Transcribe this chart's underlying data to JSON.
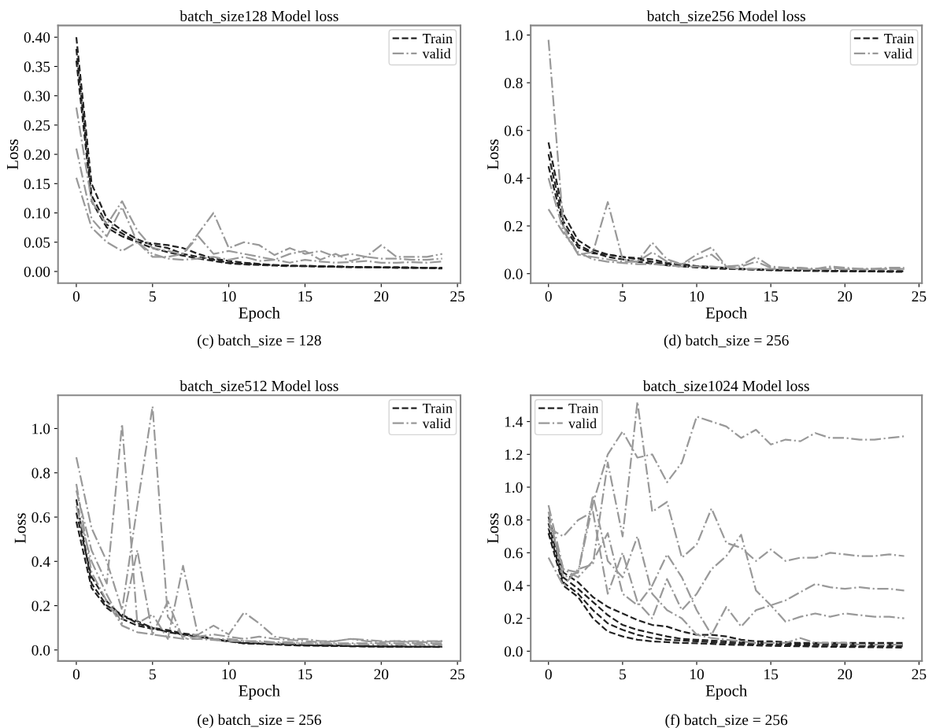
{
  "chart_data": [
    {
      "type": "line",
      "title": "batch_size128 Model loss",
      "xlabel": "Epoch",
      "ylabel": "Loss",
      "annotations": [
        "(c) batch_size = 128"
      ],
      "legend": "top right",
      "grid": false,
      "x": [
        0,
        1,
        2,
        3,
        4,
        5,
        6,
        7,
        8,
        9,
        10,
        11,
        12,
        13,
        14,
        15,
        16,
        17,
        18,
        19,
        20,
        21,
        22,
        23,
        24
      ],
      "xlim": [
        -1.2,
        25.2
      ],
      "xticks": [
        0,
        5,
        10,
        15,
        20,
        25
      ],
      "ylim": [
        -0.02,
        0.42
      ],
      "yticks": [
        {
          "value": 0,
          "label": "0.00"
        },
        {
          "value": 0.05,
          "label": "0.05"
        },
        {
          "value": 0.1,
          "label": "0.10"
        },
        {
          "value": 0.15,
          "label": "0.15"
        },
        {
          "value": 0.2,
          "label": "0.20"
        },
        {
          "value": 0.25,
          "label": "0.25"
        },
        {
          "value": 0.3,
          "label": "0.30"
        },
        {
          "value": 0.35,
          "label": "0.35"
        },
        {
          "value": 0.4,
          "label": "0.40"
        }
      ],
      "series": [
        {
          "name": "Train",
          "color": "#222222",
          "line_style": "dashed",
          "values": [
            0.4,
            0.15,
            0.09,
            0.07,
            0.055,
            0.045,
            0.04,
            0.03,
            0.025,
            0.02,
            0.015,
            0.013,
            0.012,
            0.011,
            0.01,
            0.009,
            0.009,
            0.008,
            0.008,
            0.007,
            0.007,
            0.007,
            0.006,
            0.006,
            0.006
          ]
        },
        {
          "color": "#222222",
          "line_style": "dashed",
          "values": [
            0.38,
            0.13,
            0.08,
            0.065,
            0.05,
            0.04,
            0.033,
            0.027,
            0.022,
            0.018,
            0.014,
            0.012,
            0.011,
            0.01,
            0.009,
            0.009,
            0.008,
            0.008,
            0.007,
            0.007,
            0.007,
            0.006,
            0.006,
            0.006,
            0.005
          ]
        },
        {
          "color": "#222222",
          "line_style": "dashed",
          "values": [
            0.36,
            0.12,
            0.075,
            0.06,
            0.05,
            0.048,
            0.045,
            0.04,
            0.03,
            0.022,
            0.018,
            0.015,
            0.013,
            0.011,
            0.01,
            0.01,
            0.009,
            0.009,
            0.008,
            0.008,
            0.007,
            0.007,
            0.007,
            0.006,
            0.006
          ]
        },
        {
          "name": "valid",
          "color": "#999999",
          "line_style": "dashdot",
          "values": [
            0.28,
            0.12,
            0.08,
            0.12,
            0.07,
            0.04,
            0.035,
            0.03,
            0.065,
            0.1,
            0.04,
            0.05,
            0.045,
            0.028,
            0.04,
            0.03,
            0.035,
            0.025,
            0.03,
            0.025,
            0.045,
            0.025,
            0.025,
            0.025,
            0.03
          ]
        },
        {
          "color": "#999999",
          "line_style": "dashdot",
          "values": [
            0.21,
            0.09,
            0.06,
            0.11,
            0.05,
            0.025,
            0.025,
            0.03,
            0.06,
            0.03,
            0.035,
            0.03,
            0.025,
            0.02,
            0.03,
            0.035,
            0.02,
            0.03,
            0.018,
            0.025,
            0.022,
            0.022,
            0.02,
            0.02,
            0.022
          ]
        },
        {
          "color": "#999999",
          "line_style": "dashdot",
          "values": [
            0.16,
            0.075,
            0.05,
            0.035,
            0.05,
            0.03,
            0.022,
            0.02,
            0.022,
            0.025,
            0.02,
            0.025,
            0.018,
            0.02,
            0.015,
            0.02,
            0.017,
            0.015,
            0.016,
            0.018,
            0.015,
            0.015,
            0.016,
            0.015,
            0.017
          ]
        }
      ]
    },
    {
      "type": "line",
      "title": "batch_size256 Model loss",
      "xlabel": "Epoch",
      "ylabel": "Loss",
      "annotations": [
        "(d) batch_size = 256"
      ],
      "legend": "top right",
      "grid": false,
      "x": [
        0,
        1,
        2,
        3,
        4,
        5,
        6,
        7,
        8,
        9,
        10,
        11,
        12,
        13,
        14,
        15,
        16,
        17,
        18,
        19,
        20,
        21,
        22,
        23,
        24
      ],
      "xlim": [
        -1.2,
        25.2
      ],
      "xticks": [
        0,
        5,
        10,
        15,
        20,
        25
      ],
      "ylim": [
        -0.04,
        1.04
      ],
      "yticks": [
        {
          "value": 0,
          "label": "0.0"
        },
        {
          "value": 0.2,
          "label": "0.2"
        },
        {
          "value": 0.4,
          "label": "0.4"
        },
        {
          "value": 0.6,
          "label": "0.6"
        },
        {
          "value": 0.8,
          "label": "0.8"
        },
        {
          "value": 1,
          "label": "1.0"
        }
      ],
      "series": [
        {
          "name": "Train",
          "color": "#222222",
          "line_style": "dashed",
          "values": [
            0.55,
            0.25,
            0.14,
            0.1,
            0.08,
            0.07,
            0.06,
            0.05,
            0.04,
            0.035,
            0.03,
            0.025,
            0.022,
            0.02,
            0.018,
            0.016,
            0.015,
            0.014,
            0.013,
            0.012,
            0.011,
            0.011,
            0.01,
            0.01,
            0.01
          ]
        },
        {
          "color": "#222222",
          "line_style": "dashed",
          "values": [
            0.5,
            0.22,
            0.12,
            0.09,
            0.07,
            0.06,
            0.05,
            0.042,
            0.035,
            0.03,
            0.026,
            0.022,
            0.02,
            0.018,
            0.016,
            0.014,
            0.013,
            0.012,
            0.011,
            0.01,
            0.01,
            0.009,
            0.009,
            0.008,
            0.008
          ]
        },
        {
          "color": "#222222",
          "line_style": "dashed",
          "values": [
            0.45,
            0.2,
            0.11,
            0.085,
            0.08,
            0.07,
            0.065,
            0.06,
            0.045,
            0.04,
            0.032,
            0.028,
            0.024,
            0.02,
            0.018,
            0.016,
            0.015,
            0.014,
            0.013,
            0.012,
            0.012,
            0.011,
            0.011,
            0.01,
            0.01
          ]
        },
        {
          "name": "valid",
          "color": "#999999",
          "line_style": "dashdot",
          "values": [
            0.98,
            0.2,
            0.08,
            0.09,
            0.3,
            0.06,
            0.05,
            0.13,
            0.06,
            0.04,
            0.08,
            0.11,
            0.03,
            0.035,
            0.07,
            0.03,
            0.025,
            0.025,
            0.02,
            0.03,
            0.025,
            0.02,
            0.02,
            0.025,
            0.025
          ]
        },
        {
          "color": "#999999",
          "line_style": "dashdot",
          "values": [
            0.4,
            0.18,
            0.08,
            0.07,
            0.06,
            0.05,
            0.05,
            0.09,
            0.05,
            0.04,
            0.06,
            0.08,
            0.03,
            0.03,
            0.05,
            0.025,
            0.02,
            0.02,
            0.02,
            0.025,
            0.02,
            0.02,
            0.02,
            0.02,
            0.02
          ]
        },
        {
          "color": "#999999",
          "line_style": "dashdot",
          "values": [
            0.27,
            0.17,
            0.09,
            0.06,
            0.05,
            0.045,
            0.04,
            0.04,
            0.035,
            0.03,
            0.03,
            0.03,
            0.025,
            0.02,
            0.02,
            0.02,
            0.02,
            0.018,
            0.018,
            0.02,
            0.018,
            0.018,
            0.018,
            0.02,
            0.02
          ]
        }
      ]
    },
    {
      "type": "line",
      "title": "batch_size512 Model loss",
      "xlabel": "Epoch",
      "ylabel": "Loss",
      "annotations": [
        "(e) batch_size = 256"
      ],
      "legend": "top right",
      "grid": false,
      "x": [
        0,
        1,
        2,
        3,
        4,
        5,
        6,
        7,
        8,
        9,
        10,
        11,
        12,
        13,
        14,
        15,
        16,
        17,
        18,
        19,
        20,
        21,
        22,
        23,
        24
      ],
      "xlim": [
        -1.2,
        25.2
      ],
      "xticks": [
        0,
        5,
        10,
        15,
        20,
        25
      ],
      "ylim": [
        -0.05,
        1.15
      ],
      "yticks": [
        {
          "value": 0,
          "label": "0.0"
        },
        {
          "value": 0.2,
          "label": "0.2"
        },
        {
          "value": 0.4,
          "label": "0.4"
        },
        {
          "value": 0.6,
          "label": "0.6"
        },
        {
          "value": 0.8,
          "label": "0.8"
        },
        {
          "value": 1,
          "label": "1.0"
        }
      ],
      "series": [
        {
          "name": "Train",
          "color": "#222222",
          "line_style": "dashed",
          "values": [
            0.68,
            0.3,
            0.2,
            0.16,
            0.12,
            0.1,
            0.09,
            0.075,
            0.065,
            0.05,
            0.04,
            0.03,
            0.028,
            0.025,
            0.022,
            0.02,
            0.02,
            0.018,
            0.017,
            0.016,
            0.015,
            0.015,
            0.014,
            0.014,
            0.013
          ]
        },
        {
          "color": "#222222",
          "line_style": "dashed",
          "values": [
            0.62,
            0.33,
            0.22,
            0.15,
            0.13,
            0.1,
            0.08,
            0.07,
            0.06,
            0.05,
            0.04,
            0.032,
            0.03,
            0.027,
            0.025,
            0.022,
            0.02,
            0.02,
            0.018,
            0.017,
            0.016,
            0.016,
            0.015,
            0.015,
            0.015
          ]
        },
        {
          "color": "#222222",
          "line_style": "dashed",
          "values": [
            0.58,
            0.28,
            0.19,
            0.14,
            0.11,
            0.095,
            0.085,
            0.07,
            0.06,
            0.048,
            0.038,
            0.03,
            0.028,
            0.025,
            0.022,
            0.02,
            0.019,
            0.018,
            0.017,
            0.016,
            0.015,
            0.015,
            0.014,
            0.014,
            0.014
          ]
        },
        {
          "name": "valid",
          "color": "#999999",
          "line_style": "dashdot",
          "values": [
            0.87,
            0.55,
            0.4,
            0.18,
            0.65,
            1.1,
            0.15,
            0.06,
            0.07,
            0.11,
            0.07,
            0.17,
            0.12,
            0.06,
            0.05,
            0.05,
            0.04,
            0.04,
            0.05,
            0.045,
            0.04,
            0.04,
            0.04,
            0.04,
            0.04
          ]
        },
        {
          "color": "#999999",
          "line_style": "dashdot",
          "values": [
            0.72,
            0.45,
            0.3,
            1.02,
            0.12,
            0.16,
            0.05,
            0.38,
            0.06,
            0.07,
            0.06,
            0.05,
            0.06,
            0.05,
            0.045,
            0.04,
            0.035,
            0.04,
            0.05,
            0.04,
            0.035,
            0.04,
            0.035,
            0.035,
            0.04
          ]
        },
        {
          "color": "#999999",
          "line_style": "dashdot",
          "values": [
            0.65,
            0.4,
            0.25,
            0.12,
            0.45,
            0.07,
            0.22,
            0.05,
            0.06,
            0.05,
            0.05,
            0.04,
            0.04,
            0.035,
            0.035,
            0.03,
            0.03,
            0.03,
            0.03,
            0.03,
            0.03,
            0.03,
            0.03,
            0.03,
            0.03
          ]
        },
        {
          "color": "#999999",
          "line_style": "dashdot",
          "values": [
            0.75,
            0.35,
            0.22,
            0.11,
            0.08,
            0.07,
            0.06,
            0.05,
            0.05,
            0.045,
            0.04,
            0.04,
            0.035,
            0.03,
            0.03,
            0.03,
            0.028,
            0.027,
            0.026,
            0.025,
            0.025,
            0.025,
            0.025,
            0.025,
            0.025
          ]
        }
      ]
    },
    {
      "type": "line",
      "title": "batch_size1024 Model loss",
      "xlabel": "Epoch",
      "ylabel": "Loss",
      "annotations": [
        "(f) batch_size = 256"
      ],
      "legend": "top left",
      "grid": false,
      "x": [
        0,
        1,
        2,
        3,
        4,
        5,
        6,
        7,
        8,
        9,
        10,
        11,
        12,
        13,
        14,
        15,
        16,
        17,
        18,
        19,
        20,
        21,
        22,
        23,
        24
      ],
      "xlim": [
        -1.2,
        25.2
      ],
      "xticks": [
        0,
        5,
        10,
        15,
        20,
        25
      ],
      "ylim": [
        -0.06,
        1.56
      ],
      "yticks": [
        {
          "value": 0,
          "label": "0.0"
        },
        {
          "value": 0.2,
          "label": "0.2"
        },
        {
          "value": 0.4,
          "label": "0.4"
        },
        {
          "value": 0.6,
          "label": "0.6"
        },
        {
          "value": 0.8,
          "label": "0.8"
        },
        {
          "value": 1,
          "label": "1.0"
        },
        {
          "value": 1.2,
          "label": "1.2"
        },
        {
          "value": 1.4,
          "label": "1.4"
        }
      ],
      "series": [
        {
          "name": "Train",
          "color": "#222222",
          "line_style": "dashed",
          "values": [
            0.82,
            0.48,
            0.42,
            0.33,
            0.27,
            0.23,
            0.19,
            0.16,
            0.15,
            0.12,
            0.1,
            0.1,
            0.09,
            0.07,
            0.06,
            0.06,
            0.055,
            0.05,
            0.05,
            0.05,
            0.05,
            0.05,
            0.05,
            0.05,
            0.05
          ]
        },
        {
          "color": "#222222",
          "line_style": "dashed",
          "values": [
            0.78,
            0.45,
            0.38,
            0.3,
            0.22,
            0.16,
            0.13,
            0.11,
            0.09,
            0.075,
            0.07,
            0.065,
            0.06,
            0.055,
            0.05,
            0.048,
            0.046,
            0.045,
            0.044,
            0.043,
            0.042,
            0.041,
            0.04,
            0.04,
            0.04
          ]
        },
        {
          "color": "#222222",
          "line_style": "dashed",
          "values": [
            0.75,
            0.42,
            0.35,
            0.25,
            0.17,
            0.13,
            0.1,
            0.08,
            0.07,
            0.065,
            0.06,
            0.055,
            0.05,
            0.045,
            0.042,
            0.04,
            0.038,
            0.036,
            0.034,
            0.033,
            0.032,
            0.031,
            0.03,
            0.03,
            0.03
          ]
        },
        {
          "color": "#222222",
          "line_style": "dashed",
          "values": [
            0.72,
            0.4,
            0.33,
            0.2,
            0.12,
            0.09,
            0.07,
            0.06,
            0.055,
            0.05,
            0.048,
            0.045,
            0.04,
            0.038,
            0.035,
            0.033,
            0.031,
            0.03,
            0.028,
            0.027,
            0.026,
            0.025,
            0.024,
            0.023,
            0.022
          ]
        },
        {
          "name": "valid",
          "color": "#999999",
          "line_style": "dashdot",
          "values": [
            0.8,
            0.5,
            0.48,
            0.9,
            1.2,
            1.34,
            1.18,
            1.2,
            1.03,
            1.15,
            1.43,
            1.4,
            1.37,
            1.3,
            1.35,
            1.26,
            1.29,
            1.28,
            1.33,
            1.3,
            1.3,
            1.29,
            1.29,
            1.3,
            1.31
          ]
        },
        {
          "color": "#999999",
          "line_style": "dashdot",
          "values": [
            0.57,
            0.4,
            0.5,
            0.53,
            1.15,
            0.7,
            1.52,
            0.85,
            0.91,
            0.57,
            0.65,
            0.87,
            0.66,
            0.63,
            0.55,
            0.62,
            0.55,
            0.57,
            0.57,
            0.6,
            0.59,
            0.58,
            0.58,
            0.59,
            0.58
          ]
        },
        {
          "color": "#999999",
          "line_style": "dashdot",
          "values": [
            0.75,
            0.7,
            0.8,
            0.85,
            0.35,
            0.6,
            0.3,
            0.2,
            0.44,
            0.25,
            0.35,
            0.5,
            0.58,
            0.71,
            0.37,
            0.28,
            0.18,
            0.21,
            0.23,
            0.21,
            0.23,
            0.22,
            0.21,
            0.21,
            0.2
          ]
        },
        {
          "color": "#999999",
          "line_style": "dashdot",
          "values": [
            0.89,
            0.5,
            0.45,
            0.55,
            0.72,
            0.35,
            0.28,
            0.4,
            0.59,
            0.45,
            0.25,
            0.1,
            0.27,
            0.15,
            0.25,
            0.28,
            0.31,
            0.36,
            0.41,
            0.39,
            0.38,
            0.39,
            0.38,
            0.38,
            0.37
          ]
        },
        {
          "color": "#999999",
          "line_style": "dashdot",
          "values": [
            0.85,
            0.45,
            0.48,
            0.95,
            0.55,
            0.45,
            0.7,
            0.35,
            0.25,
            0.2,
            0.1,
            0.08,
            0.07,
            0.06,
            0.05,
            0.05,
            0.05,
            0.08,
            0.05,
            0.05,
            0.05,
            0.04,
            0.04,
            0.04,
            0.04
          ]
        }
      ]
    }
  ]
}
